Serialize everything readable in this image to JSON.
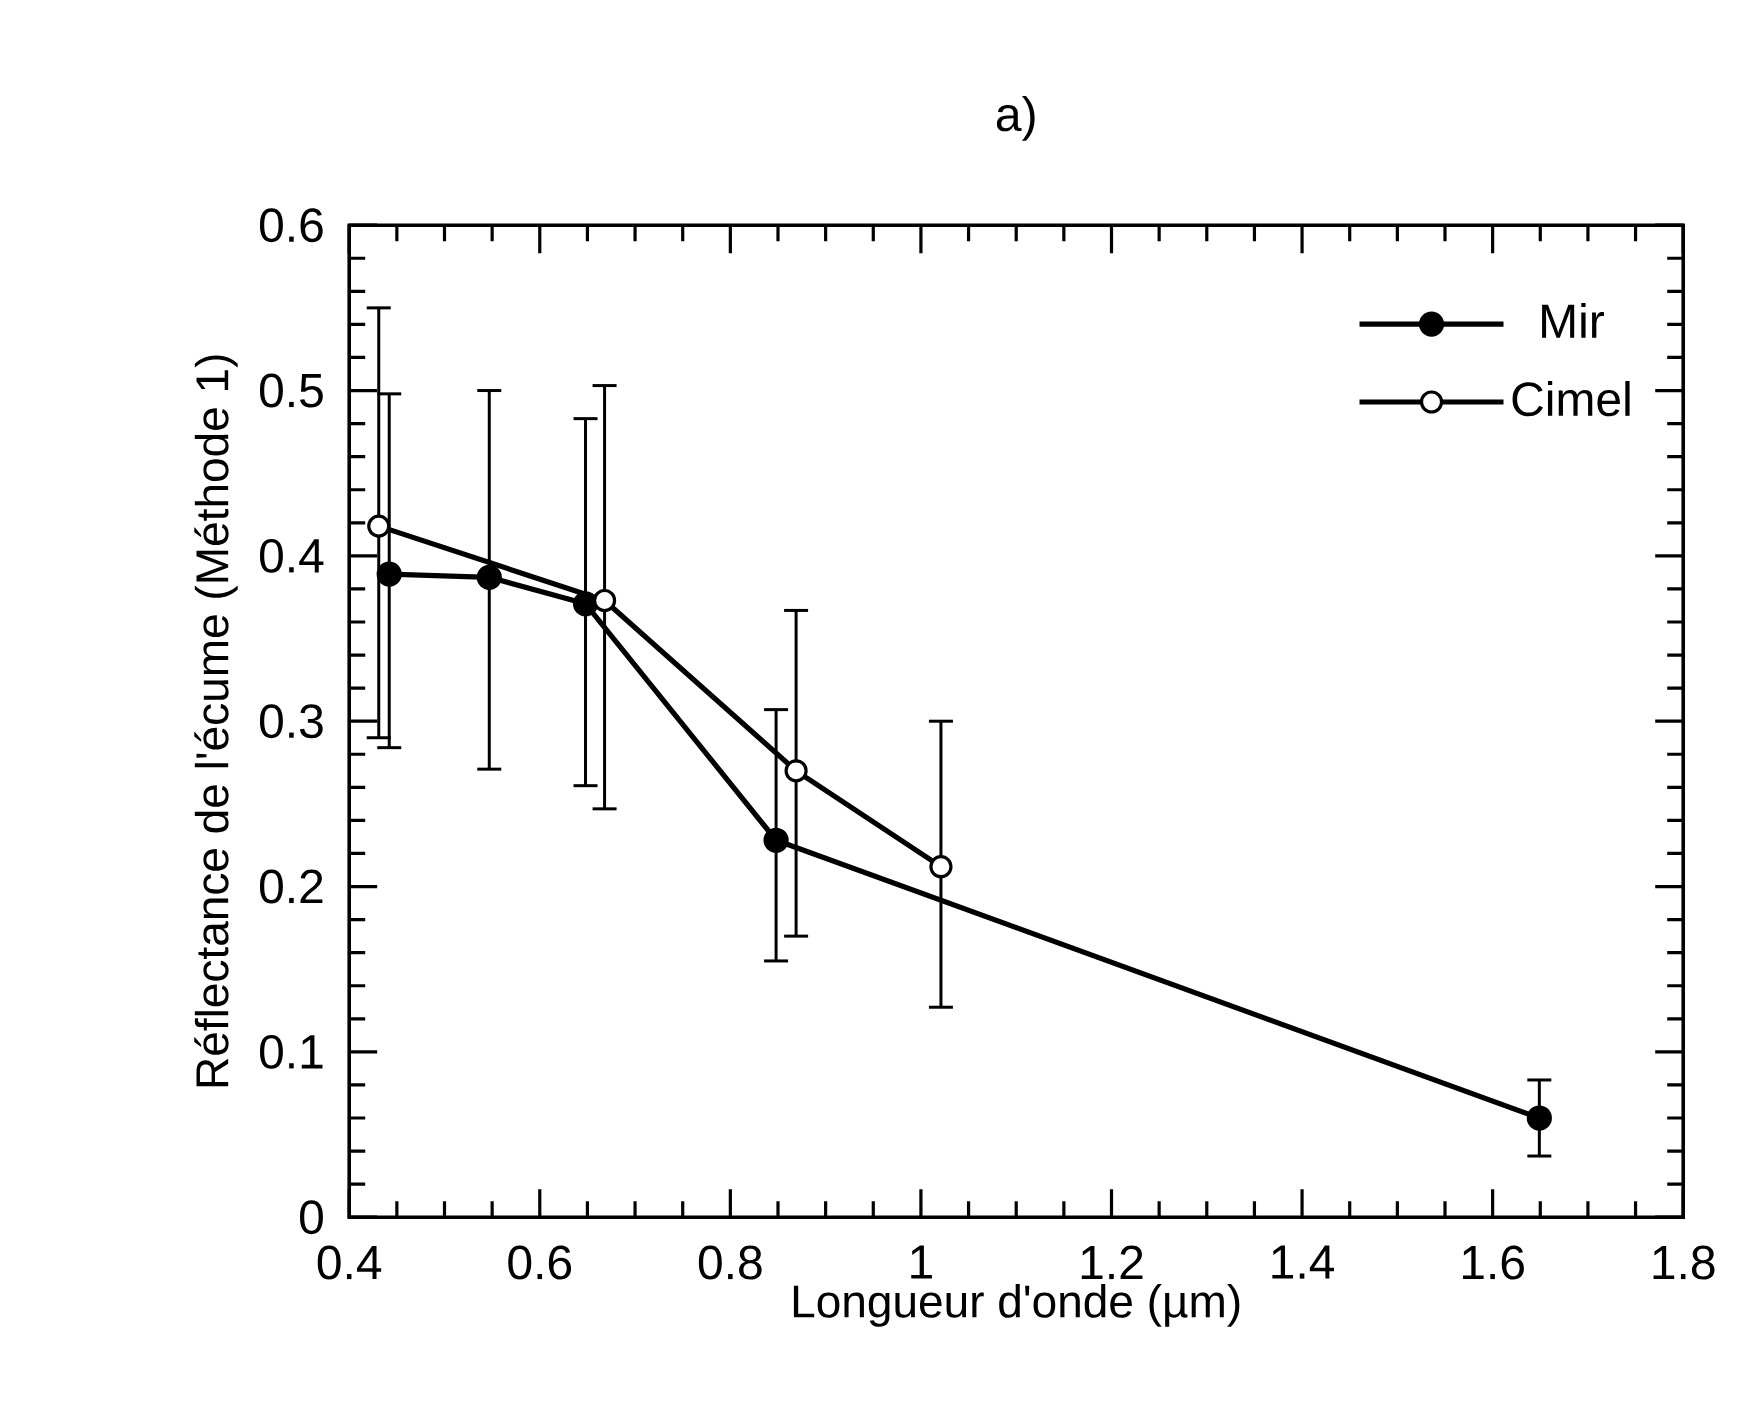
{
  "chart_data": {
    "type": "line",
    "title": "a)",
    "xlabel": "Longueur d'onde (µm)",
    "ylabel": "Réflectance de l'écume (Méthode 1)",
    "xlim": [
      0.4,
      1.8
    ],
    "ylim": [
      0,
      0.6
    ],
    "xticks": [
      0.4,
      0.6,
      0.8,
      1,
      1.2,
      1.4,
      1.6,
      1.8
    ],
    "yticks": [
      0,
      0.1,
      0.2,
      0.3,
      0.4,
      0.5,
      0.6
    ],
    "legend": "top right",
    "marker": "circle",
    "line_style": "solid",
    "grid": false,
    "series": [
      {
        "name": "Mir",
        "color": "#000000",
        "x": [
          0.442,
          0.547,
          0.648,
          0.848,
          1.649
        ],
        "values": [
          0.389,
          0.387,
          0.371,
          0.228,
          0.06
        ],
        "errors": [
          [
            0.284,
            0.498
          ],
          [
            0.271,
            0.5
          ],
          [
            0.261,
            0.483
          ],
          [
            0.155,
            0.307
          ],
          [
            0.037,
            0.083
          ]
        ]
      },
      {
        "name": "Cimel",
        "color": "#000000",
        "x": [
          0.431,
          0.668,
          0.869,
          1.021
        ],
        "values": [
          0.418,
          0.373,
          0.27,
          0.212
        ],
        "errors": [
          [
            0.29,
            0.55
          ],
          [
            0.247,
            0.503
          ],
          [
            0.17,
            0.367
          ],
          [
            0.127,
            0.3
          ]
        ]
      }
    ]
  }
}
